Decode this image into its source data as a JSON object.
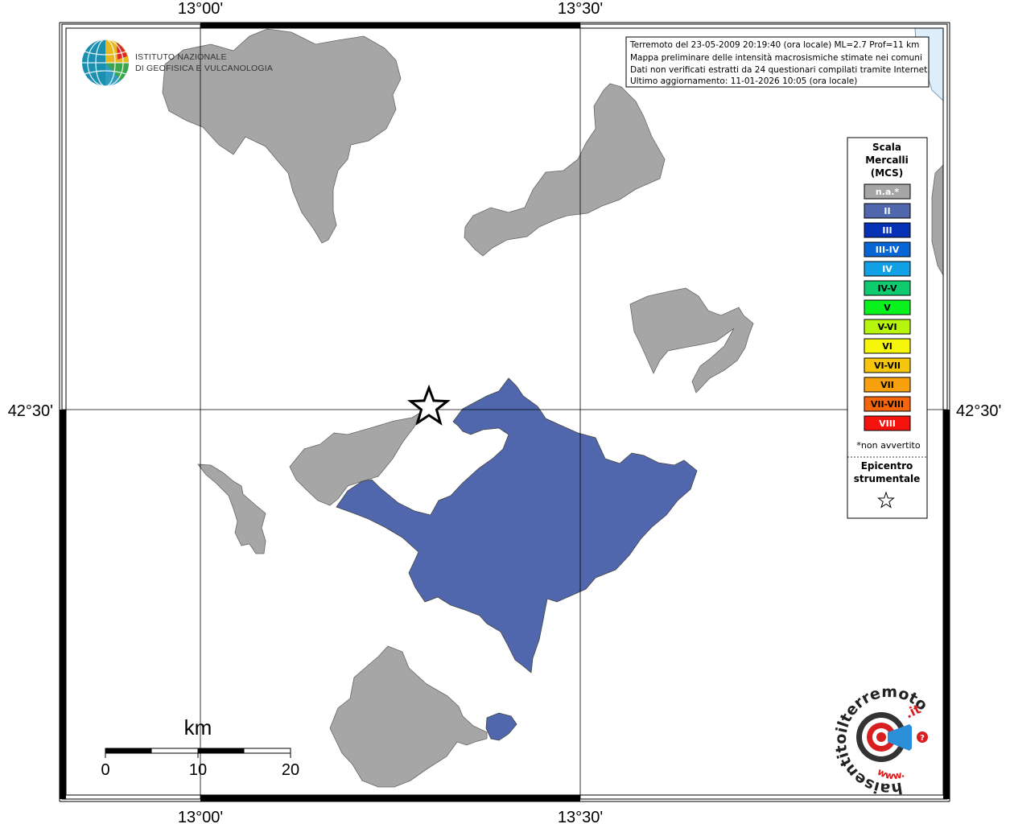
{
  "map": {
    "lon_labels": [
      "13°00'",
      "13°30'"
    ],
    "lat_labels": [
      "42°30'"
    ]
  },
  "info_box": {
    "lines": [
      "Terremoto del 23-05-2009 20:19:40 (ora locale) ML=2.7 Prof=11 km",
      "Mappa preliminare delle intensità macrosismiche stimate nei comuni",
      "Dati non verificati estratti da 24 questionari compilati tramite Internet.",
      "Ultimo aggiornamento: 11-01-2026 10:05 (ora locale)"
    ]
  },
  "logo": {
    "line1": "ISTITUTO NAZIONALE",
    "line2": "DI GEOFISICA E VULCANOLOGIA"
  },
  "legend": {
    "title": [
      "Scala",
      "Mercalli",
      "(MCS)"
    ],
    "items": [
      {
        "label": "n.a.*",
        "color": "#a6a6a6",
        "text_color": "#ffffff"
      },
      {
        "label": "II",
        "color": "#5167ad",
        "text_color": "#ffffff"
      },
      {
        "label": "III",
        "color": "#0631b5",
        "text_color": "#ffffff"
      },
      {
        "label": "III-IV",
        "color": "#0765d6",
        "text_color": "#ffffff"
      },
      {
        "label": "IV",
        "color": "#0fa0e6",
        "text_color": "#ffffff"
      },
      {
        "label": "IV-V",
        "color": "#0ecb6f",
        "text_color": "#000000"
      },
      {
        "label": "V",
        "color": "#0af21e",
        "text_color": "#000000"
      },
      {
        "label": "V-VI",
        "color": "#b7f50c",
        "text_color": "#000000"
      },
      {
        "label": "VI",
        "color": "#f6f60b",
        "text_color": "#000000"
      },
      {
        "label": "VI-VII",
        "color": "#f5c60c",
        "text_color": "#000000"
      },
      {
        "label": "VII",
        "color": "#f5a00c",
        "text_color": "#000000"
      },
      {
        "label": "VII-VIII",
        "color": "#f5650c",
        "text_color": "#000000"
      },
      {
        "label": "VIII",
        "color": "#f5110c",
        "text_color": "#ffffff"
      }
    ],
    "note": "*non avvertito",
    "epicenter_label": [
      "Epicentro",
      "strumentale"
    ],
    "epicenter_symbol": "star"
  },
  "scale_bar": {
    "unit": "km",
    "labels": [
      "0",
      "10",
      "20"
    ]
  },
  "hai_sentito": {
    "text_main": "haisentitoilterremoto",
    "text_tld": ".it",
    "text_www": "www."
  },
  "colors": {
    "not_felt": "#a6a6a6",
    "intensity_II": "#5167ad",
    "sea": "#ddeefa"
  }
}
